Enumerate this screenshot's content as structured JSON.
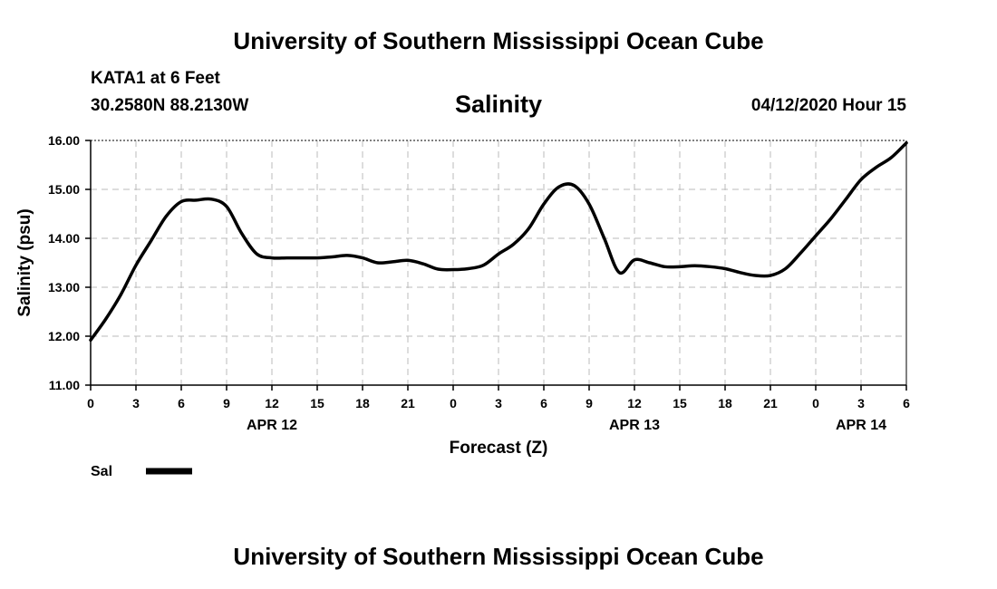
{
  "header": {
    "title": "University of Southern Mississippi Ocean Cube",
    "station": "KATA1 at 6 Feet",
    "coords": "30.2580N 88.2130W",
    "date": "04/12/2020 Hour 15"
  },
  "footer": {
    "title": "University of Southern Mississippi Ocean Cube"
  },
  "chart_data": {
    "type": "line",
    "title": "Salinity",
    "xlabel": "Forecast (Z)",
    "ylabel": "Salinity (psu)",
    "ylim": [
      11.0,
      16.0
    ],
    "y_ticks": [
      "11.00",
      "12.00",
      "13.00",
      "14.00",
      "15.00",
      "16.00"
    ],
    "x_ticks": [
      "0",
      "3",
      "6",
      "9",
      "12",
      "15",
      "18",
      "21",
      "0",
      "3",
      "6",
      "9",
      "12",
      "15",
      "18",
      "21",
      "0",
      "3",
      "6"
    ],
    "date_labels": [
      {
        "label": "APR 12",
        "tick_index": 4
      },
      {
        "label": "APR 13",
        "tick_index": 12
      },
      {
        "label": "APR 14",
        "tick_index": 17
      }
    ],
    "grid": true,
    "legend_position": "bottom-left",
    "series": [
      {
        "name": "Sal",
        "color": "#000000",
        "x_hours": [
          0,
          1,
          2,
          3,
          4,
          5,
          6,
          7,
          8,
          9,
          10,
          11,
          12,
          13,
          14,
          15,
          16,
          17,
          18,
          19,
          20,
          21,
          22,
          23,
          24,
          25,
          26,
          27,
          28,
          29,
          30,
          31,
          32,
          33,
          34,
          35,
          36,
          37,
          38,
          39,
          40,
          41,
          42,
          43,
          44,
          45,
          46,
          47,
          48,
          49,
          50,
          51,
          52,
          53,
          54
        ],
        "values": [
          11.92,
          12.35,
          12.85,
          13.45,
          13.95,
          14.45,
          14.75,
          14.78,
          14.8,
          14.65,
          14.1,
          13.68,
          13.6,
          13.6,
          13.6,
          13.6,
          13.62,
          13.65,
          13.6,
          13.5,
          13.52,
          13.55,
          13.48,
          13.37,
          13.36,
          13.38,
          13.45,
          13.68,
          13.88,
          14.2,
          14.7,
          15.05,
          15.08,
          14.7,
          14.0,
          13.3,
          13.56,
          13.5,
          13.42,
          13.42,
          13.44,
          13.42,
          13.38,
          13.3,
          13.24,
          13.24,
          13.38,
          13.7,
          14.05,
          14.4,
          14.8,
          15.2,
          15.45,
          15.65,
          15.95
        ]
      }
    ]
  }
}
